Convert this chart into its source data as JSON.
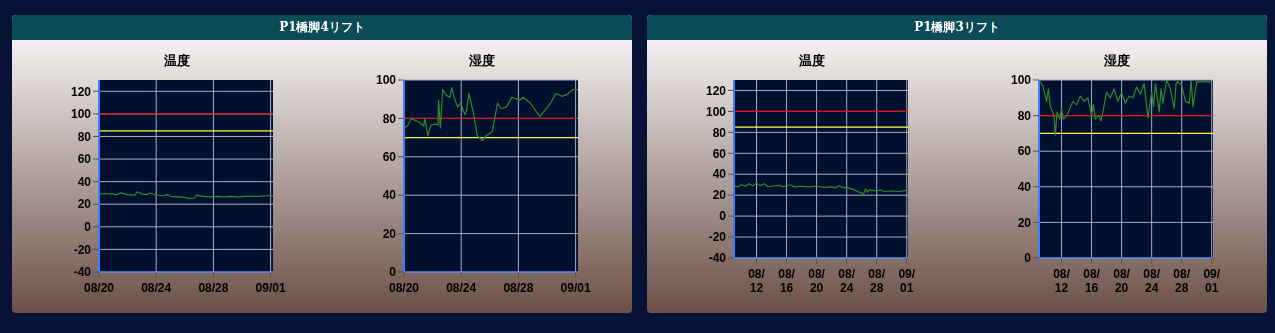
{
  "chart_data": [
    {
      "type": "line",
      "title": "温度",
      "annotations": [
        "P1橋脚4リフト"
      ],
      "x": [
        "--08-20T00:00",
        "--08-20T12:00",
        "--08-21T00:00",
        "--08-21T06:00",
        "--08-21T12:00",
        "--08-22T00:00",
        "--08-22T12:00",
        "--08-22T16:00",
        "--08-23T00:00",
        "--08-23T08:00",
        "--08-23T14:00",
        "--08-24T00:00",
        "--08-24T12:00",
        "--08-24T18:00",
        "--08-25T00:00",
        "--08-25T12:00",
        "--08-26T00:00",
        "--08-26T08:00",
        "--08-26T16:00",
        "--08-26T20:00",
        "--08-27T06:00",
        "--08-27T18:00",
        "--08-28T06:00",
        "--08-28T18:00",
        "--08-29T06:00",
        "--08-29T18:00",
        "--08-30T06:00",
        "--08-30T18:00",
        "--08-31T06:00",
        "--08-31T18:00",
        "--09-01T00:00",
        "--09-01T04:00"
      ],
      "series": [
        {
          "color": "#2e8b2e",
          "values": [
            29,
            29.5,
            29,
            28.5,
            30,
            28.5,
            28,
            31,
            29,
            28.5,
            30,
            28,
            27.5,
            28.5,
            27,
            26.5,
            26,
            25,
            25.5,
            28,
            27,
            26.5,
            27,
            26.5,
            27,
            26.5,
            27,
            27,
            27,
            27.5,
            28,
            27.5
          ]
        }
      ],
      "xlim": [
        "--08-20T00:00",
        "--09-01T04:00"
      ],
      "xticks": [
        {
          "value": "--08-20",
          "label": "08/20"
        },
        {
          "value": "--08-24",
          "label": "08/24"
        },
        {
          "value": "--08-28",
          "label": "08/28"
        },
        {
          "value": "--09-01",
          "label": "09/01"
        }
      ],
      "ylim": [
        -40,
        130
      ],
      "yticks": [
        -40,
        -20,
        0,
        20,
        40,
        60,
        80,
        100,
        120
      ],
      "grid": true,
      "ref_lines": [
        {
          "axis": "y",
          "value": 100,
          "color": "#dd1111"
        },
        {
          "axis": "y",
          "value": 85,
          "color": "#ffff44"
        }
      ]
    },
    {
      "type": "line",
      "title": "湿度",
      "x": [
        "--08-20T00:00",
        "--08-20T06:00",
        "--08-20T12:00",
        "--08-20T22:00",
        "--08-21T04:00",
        "--08-21T09:00",
        "--08-21T11:00",
        "--08-21T16:00",
        "--08-21T21:00",
        "--08-22T04:00",
        "--08-22T09:00",
        "--08-22T10:00",
        "--08-22T13:00",
        "--08-22T17:00",
        "--08-22T23:00",
        "--08-23T05:00",
        "--08-23T08:00",
        "--08-23T12:00",
        "--08-23T18:00",
        "--08-23T23:00",
        "--08-24T06:00",
        "--08-24T09:00",
        "--08-24T13:00",
        "--08-24T21:00",
        "--08-25T03:00",
        "--08-25T12:00",
        "--08-25T18:00",
        "--08-26T04:00",
        "--08-26T13:00",
        "--08-26T19:00",
        "--08-27T04:00",
        "--08-27T13:00",
        "--08-28T02:00",
        "--08-28T08:00",
        "--08-28T20:00",
        "--08-29T12:00",
        "--08-29T21:00",
        "--08-30T06:00",
        "--08-30T15:00",
        "--08-31T01:00",
        "--08-31T10:00",
        "--08-31T19:00",
        "--09-01T04:00"
      ],
      "series": [
        {
          "color": "#2e8b2e",
          "values": [
            75,
            76,
            80,
            78.5,
            77.5,
            76,
            80,
            71,
            76.5,
            77,
            76.5,
            89.5,
            75,
            95,
            92,
            91,
            96,
            91,
            86,
            88,
            82,
            84,
            93,
            82,
            71,
            68.5,
            71,
            73,
            88,
            85,
            86,
            91,
            89.5,
            91,
            88,
            81,
            84.5,
            88,
            93,
            91.5,
            92.5,
            95,
            95
          ]
        }
      ],
      "xlim": [
        "--08-20T00:00",
        "--09-01T04:00"
      ],
      "xticks": [
        {
          "value": "--08-20",
          "label": "08/20"
        },
        {
          "value": "--08-24",
          "label": "08/24"
        },
        {
          "value": "--08-28",
          "label": "08/28"
        },
        {
          "value": "--09-01",
          "label": "09/01"
        }
      ],
      "ylim": [
        0,
        100
      ],
      "yticks": [
        0,
        20,
        40,
        60,
        80,
        100
      ],
      "grid": true,
      "ref_lines": [
        {
          "axis": "y",
          "value": 80,
          "color": "#dd1111"
        },
        {
          "axis": "y",
          "value": 70,
          "color": "#ffff44"
        }
      ]
    },
    {
      "type": "line",
      "title": "温度",
      "annotations": [
        "P1橋脚3リフト"
      ],
      "x": [
        "--08-09T00:00",
        "--08-09T12:00",
        "--08-10T00:00",
        "--08-10T12:00",
        "--08-11T00:00",
        "--08-11T12:00",
        "--08-12T00:00",
        "--08-12T12:00",
        "--08-13T00:00",
        "--08-13T12:00",
        "--08-14T00:00",
        "--08-15T00:00",
        "--08-15T12:00",
        "--08-16T00:00",
        "--08-16T12:00",
        "--08-17T00:00",
        "--08-18T00:00",
        "--08-19T00:00",
        "--08-20T00:00",
        "--08-21T00:00",
        "--08-22T00:00",
        "--08-22T12:00",
        "--08-23T00:00",
        "--08-23T12:00",
        "--08-24T00:00",
        "--08-25T00:00",
        "--08-26T00:00",
        "--08-26T06:00",
        "--08-26T12:00",
        "--08-26T18:00",
        "--08-27T00:00",
        "--08-28T00:00",
        "--08-28T12:00",
        "--08-29T00:00",
        "--08-30T00:00",
        "--08-31T00:00",
        "--09-01T00:00"
      ],
      "series": [
        {
          "color": "#2e8b2e",
          "values": [
            29,
            28,
            30,
            28.5,
            31,
            29,
            31.5,
            29,
            31,
            28,
            28.5,
            29.5,
            28,
            29,
            30,
            28,
            28.5,
            28,
            28.5,
            27.5,
            28,
            27,
            29,
            27,
            27.5,
            25,
            22,
            21,
            26,
            23,
            25,
            24,
            25,
            23.5,
            24,
            23.5,
            24.5
          ]
        }
      ],
      "xlim": [
        "--08-09T00:00",
        "--09-01T04:00"
      ],
      "xticks": [
        {
          "value": "--08-12",
          "label": "08/\n12"
        },
        {
          "value": "--08-16",
          "label": "08/\n16"
        },
        {
          "value": "--08-20",
          "label": "08/\n20"
        },
        {
          "value": "--08-24",
          "label": "08/\n24"
        },
        {
          "value": "--08-28",
          "label": "08/\n28"
        },
        {
          "value": "--09-01",
          "label": "09/\n01"
        }
      ],
      "ylim": [
        -40,
        130
      ],
      "yticks": [
        -40,
        -20,
        0,
        20,
        40,
        60,
        80,
        100,
        120
      ],
      "grid": true,
      "ref_lines": [
        {
          "axis": "y",
          "value": 100,
          "color": "#dd1111"
        },
        {
          "axis": "y",
          "value": 85,
          "color": "#ffff44"
        }
      ]
    },
    {
      "type": "line",
      "title": "湿度",
      "x": [
        "--08-09T00:00",
        "--08-09T12:00",
        "--08-10T00:00",
        "--08-10T06:00",
        "--08-10T12:00",
        "--08-11T00:00",
        "--08-11T04:00",
        "--08-11T10:00",
        "--08-11T18:00",
        "--08-12T00:00",
        "--08-12T06:00",
        "--08-12T18:00",
        "--08-13T00:00",
        "--08-13T12:00",
        "--08-14T00:00",
        "--08-14T12:00",
        "--08-15T00:00",
        "--08-15T12:00",
        "--08-16T00:00",
        "--08-16T06:00",
        "--08-16T12:00",
        "--08-17T00:00",
        "--08-17T06:00",
        "--08-17T12:00",
        "--08-18T00:00",
        "--08-18T12:00",
        "--08-19T00:00",
        "--08-19T12:00",
        "--08-20T00:00",
        "--08-20T12:00",
        "--08-21T00:00",
        "--08-21T12:00",
        "--08-22T00:00",
        "--08-22T12:00",
        "--08-23T00:00",
        "--08-23T12:00",
        "--08-24T00:00",
        "--08-24T06:00",
        "--08-24T12:00",
        "--08-25T00:00",
        "--08-25T06:00",
        "--08-25T12:00",
        "--08-26T00:00",
        "--08-26T12:00",
        "--08-27T00:00",
        "--08-27T06:00",
        "--08-27T12:00",
        "--08-28T00:00",
        "--08-28T12:00",
        "--08-29T00:00",
        "--08-29T06:00",
        "--08-29T12:00",
        "--08-30T00:00",
        "--08-30T12:00",
        "--08-31T00:00",
        "--09-01T00:00"
      ],
      "series": [
        {
          "color": "#2e8b2e",
          "values": [
            100,
            97,
            88,
            95,
            85,
            80,
            69,
            82,
            78,
            84,
            78,
            80,
            83,
            88,
            86,
            91,
            88,
            90,
            80,
            86,
            78,
            80,
            77,
            82,
            93,
            90,
            95,
            88,
            93,
            87,
            91,
            90,
            96,
            92,
            98,
            79,
            93,
            85,
            98,
            82,
            95,
            87,
            100,
            95,
            84,
            98,
            99,
            97,
            88,
            87,
            100,
            85,
            99,
            99,
            99,
            99
          ]
        }
      ],
      "xlim": [
        "--08-09T00:00",
        "--09-01T04:00"
      ],
      "xticks": [
        {
          "value": "--08-12",
          "label": "08/\n12"
        },
        {
          "value": "--08-16",
          "label": "08/\n16"
        },
        {
          "value": "--08-20",
          "label": "08/\n20"
        },
        {
          "value": "--08-24",
          "label": "08/\n24"
        },
        {
          "value": "--08-28",
          "label": "08/\n28"
        },
        {
          "value": "--09-01",
          "label": "09/\n01"
        }
      ],
      "ylim": [
        0,
        100
      ],
      "yticks": [
        0,
        20,
        40,
        60,
        80,
        100
      ],
      "grid": true,
      "ref_lines": [
        {
          "axis": "y",
          "value": 80,
          "color": "#dd1111"
        },
        {
          "axis": "y",
          "value": 70,
          "color": "#ffff44"
        }
      ]
    }
  ]
}
